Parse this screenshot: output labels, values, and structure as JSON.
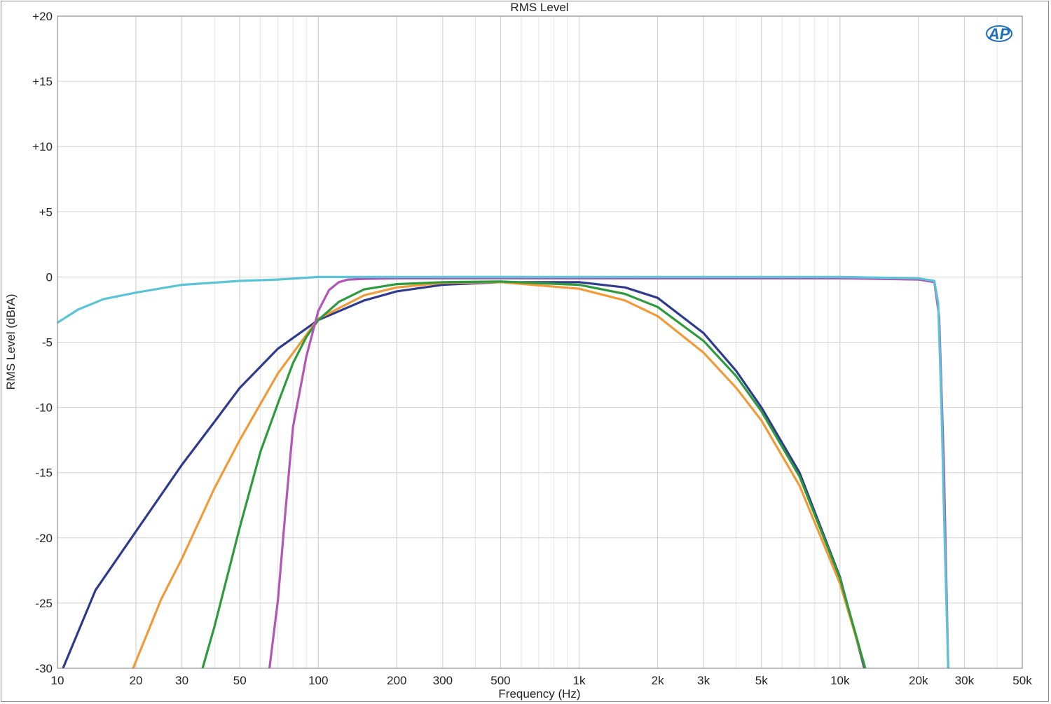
{
  "chart_data": {
    "type": "line",
    "title": "RMS Level",
    "xlabel": "Frequency (Hz)",
    "ylabel": "RMS Level (dBrA)",
    "x_scale": "log",
    "xlim": [
      10,
      50000
    ],
    "ylim": [
      -30,
      20
    ],
    "grid": true,
    "legend": "none",
    "logo_text": "AP",
    "x_ticks": [
      {
        "value": 10,
        "label": "10"
      },
      {
        "value": 20,
        "label": "20"
      },
      {
        "value": 30,
        "label": "30"
      },
      {
        "value": 50,
        "label": "50"
      },
      {
        "value": 100,
        "label": "100"
      },
      {
        "value": 200,
        "label": "200"
      },
      {
        "value": 300,
        "label": "300"
      },
      {
        "value": 500,
        "label": "500"
      },
      {
        "value": 1000,
        "label": "1k"
      },
      {
        "value": 2000,
        "label": "2k"
      },
      {
        "value": 3000,
        "label": "3k"
      },
      {
        "value": 5000,
        "label": "5k"
      },
      {
        "value": 10000,
        "label": "10k"
      },
      {
        "value": 20000,
        "label": "20k"
      },
      {
        "value": 30000,
        "label": "30k"
      },
      {
        "value": 50000,
        "label": "50k"
      }
    ],
    "y_ticks": [
      {
        "value": 20,
        "label": "+20"
      },
      {
        "value": 15,
        "label": "+15"
      },
      {
        "value": 10,
        "label": "+10"
      },
      {
        "value": 5,
        "label": "+5"
      },
      {
        "value": 0,
        "label": "0"
      },
      {
        "value": -5,
        "label": "-5"
      },
      {
        "value": -10,
        "label": "-10"
      },
      {
        "value": -15,
        "label": "-15"
      },
      {
        "value": -20,
        "label": "-20"
      },
      {
        "value": -25,
        "label": "-25"
      },
      {
        "value": -30,
        "label": "-30"
      }
    ],
    "series": [
      {
        "color": "#2e3a8c",
        "x": [
          10.5,
          14,
          20,
          30,
          40,
          50,
          70,
          100,
          150,
          200,
          300,
          500,
          1000,
          1500,
          2000,
          3000,
          4000,
          5000,
          7000,
          10000,
          12400
        ],
        "y": [
          -30,
          -24,
          -19.5,
          -14.4,
          -11.1,
          -8.5,
          -5.5,
          -3.3,
          -1.8,
          -1.1,
          -0.6,
          -0.4,
          -0.4,
          -0.8,
          -1.6,
          -4.3,
          -7.2,
          -10,
          -15,
          -23,
          -30
        ]
      },
      {
        "color": "#f19a38",
        "x": [
          19.5,
          25,
          30,
          40,
          50,
          70,
          100,
          150,
          200,
          300,
          500,
          1000,
          1500,
          2000,
          3000,
          4000,
          5000,
          7000,
          10000,
          12500
        ],
        "y": [
          -30,
          -24.7,
          -21.6,
          -16.2,
          -12.5,
          -7.4,
          -3.2,
          -1.4,
          -0.8,
          -0.45,
          -0.4,
          -0.9,
          -1.8,
          -3,
          -5.8,
          -8.5,
          -11,
          -16,
          -23.5,
          -30
        ]
      },
      {
        "color": "#2e9a3e",
        "x": [
          36,
          40,
          50,
          60,
          70,
          80,
          90,
          100,
          120,
          150,
          200,
          300,
          500,
          1000,
          1500,
          2000,
          3000,
          4000,
          5000,
          7000,
          10000,
          12500
        ],
        "y": [
          -30,
          -26.8,
          -19.2,
          -13.4,
          -9.7,
          -6.6,
          -4.6,
          -3.3,
          -1.9,
          -0.95,
          -0.55,
          -0.4,
          -0.35,
          -0.6,
          -1.3,
          -2.3,
          -4.9,
          -7.6,
          -10.3,
          -15.3,
          -23.1,
          -30
        ]
      },
      {
        "color": "#b255b5",
        "x": [
          65,
          70,
          75,
          80,
          90,
          100,
          110,
          120,
          130,
          150,
          200,
          500,
          1000,
          5000,
          10000,
          20000,
          23000,
          24000,
          25000,
          26000
        ],
        "y": [
          -30,
          -24.8,
          -17.7,
          -11.5,
          -6.1,
          -2.6,
          -1,
          -0.4,
          -0.2,
          -0.15,
          -0.1,
          -0.1,
          -0.1,
          -0.1,
          -0.1,
          -0.2,
          -0.4,
          -3,
          -14,
          -30
        ]
      },
      {
        "color": "#5bc3d6",
        "x": [
          10,
          12,
          15,
          20,
          30,
          50,
          70,
          100,
          200,
          500,
          1000,
          5000,
          10000,
          20000,
          23000,
          23800,
          24500,
          25200,
          26000
        ],
        "y": [
          -3.5,
          -2.5,
          -1.7,
          -1.2,
          -0.6,
          -0.3,
          -0.2,
          0,
          0,
          0,
          0,
          0,
          0,
          -0.1,
          -0.3,
          -2,
          -10,
          -20,
          -30
        ]
      }
    ]
  }
}
